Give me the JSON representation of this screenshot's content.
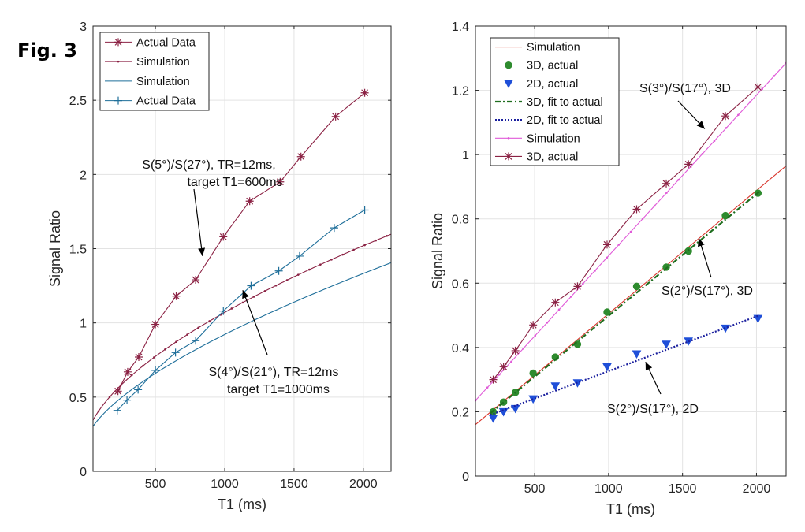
{
  "figure": {
    "label": "Fig. 3"
  },
  "chart_data": [
    {
      "type": "line",
      "xlabel": "T1 (ms)",
      "ylabel": "Signal Ratio",
      "xlim": [
        50,
        2200
      ],
      "ylim": [
        0,
        3
      ],
      "xticks": [
        500,
        1000,
        1500,
        2000
      ],
      "yticks": [
        0,
        0.5,
        1,
        1.5,
        2,
        2.5,
        3
      ],
      "ytick_labels": [
        "0",
        "0.5",
        "1",
        "1.5",
        "2",
        "2.5",
        "3"
      ],
      "grid": true,
      "legend_position": "top-left",
      "series": [
        {
          "name": "Actual Data",
          "color": "#8b2244",
          "marker": "star",
          "x": [
            230,
            300,
            380,
            500,
            650,
            790,
            990,
            1180,
            1400,
            1550,
            1800,
            2010
          ],
          "y": [
            0.54,
            0.67,
            0.77,
            0.99,
            1.18,
            1.29,
            1.58,
            1.82,
            1.95,
            2.12,
            2.39,
            2.55
          ]
        },
        {
          "name": "Simulation",
          "color": "#8b2244",
          "marker": "dot",
          "fn": "sim5_27",
          "x_range": [
            50,
            2200
          ]
        },
        {
          "name": "Simulation",
          "color": "#1f6f9a",
          "marker": "none",
          "fn": "sim4_21",
          "x_range": [
            50,
            2200
          ]
        },
        {
          "name": "Actual Data",
          "color": "#1f6f9a",
          "marker": "plus",
          "x": [
            225,
            295,
            375,
            500,
            645,
            790,
            990,
            1190,
            1390,
            1540,
            1790,
            2010
          ],
          "y": [
            0.41,
            0.48,
            0.55,
            0.68,
            0.8,
            0.88,
            1.08,
            1.25,
            1.35,
            1.45,
            1.64,
            1.76
          ]
        }
      ],
      "annotations": [
        {
          "lines": [
            "S(5°)/S(27°), TR=12ms,",
            "target T1=600ms"
          ],
          "point_to": [
            840,
            1.45
          ]
        },
        {
          "lines": [
            "S(4°)/S(21°), TR=12ms",
            "target T1=1000ms"
          ],
          "point_to": [
            1130,
            1.22
          ]
        }
      ]
    },
    {
      "type": "line",
      "xlabel": "T1 (ms)",
      "ylabel": "Signal Ratio",
      "xlim": [
        100,
        2200
      ],
      "ylim": [
        0,
        1.4
      ],
      "xticks": [
        500,
        1000,
        1500,
        2000
      ],
      "yticks": [
        0,
        0.2,
        0.4,
        0.6,
        0.8,
        1,
        1.2,
        1.4
      ],
      "ytick_labels": [
        "0",
        "0.2",
        "0.4",
        "0.6",
        "0.8",
        "1",
        "1.2",
        "1.4"
      ],
      "grid": true,
      "legend_position": "top-left",
      "series": [
        {
          "name": "Simulation",
          "color": "#d9342b",
          "marker": "none",
          "x": [
            100,
            2200
          ],
          "y": [
            0.16,
            0.965
          ]
        },
        {
          "name": "3D, actual",
          "color": "#2e8b2e",
          "marker": "circle",
          "x": [
            220,
            290,
            370,
            490,
            640,
            790,
            990,
            1190,
            1390,
            1540,
            1790,
            2010
          ],
          "y": [
            0.2,
            0.23,
            0.26,
            0.32,
            0.37,
            0.41,
            0.51,
            0.59,
            0.65,
            0.7,
            0.81,
            0.88
          ]
        },
        {
          "name": "2D, actual",
          "color": "#1f4fd8",
          "marker": "triangle-down",
          "x": [
            220,
            290,
            370,
            490,
            640,
            790,
            990,
            1190,
            1390,
            1540,
            1790,
            2010
          ],
          "y": [
            0.18,
            0.2,
            0.21,
            0.24,
            0.28,
            0.29,
            0.34,
            0.38,
            0.41,
            0.42,
            0.46,
            0.49
          ]
        },
        {
          "name": "3D, fit to actual",
          "color": "#1f6e1f",
          "marker": "none",
          "dash": "dashdot",
          "x": [
            200,
            2020
          ],
          "y": [
            0.195,
            0.885
          ]
        },
        {
          "name": "2D, fit to actual",
          "color": "#1a1f9e",
          "marker": "none",
          "dash": "dotted",
          "x": [
            200,
            2020
          ],
          "y": [
            0.19,
            0.5
          ]
        },
        {
          "name": "Simulation",
          "color": "#e05ad8",
          "marker": "dot",
          "x": [
            100,
            2200
          ],
          "y": [
            0.235,
            1.285
          ]
        },
        {
          "name": "3D, actual",
          "color": "#8b2244",
          "marker": "star",
          "x": [
            220,
            290,
            370,
            490,
            640,
            790,
            990,
            1190,
            1390,
            1540,
            1790,
            2010
          ],
          "y": [
            0.3,
            0.34,
            0.39,
            0.47,
            0.54,
            0.59,
            0.72,
            0.83,
            0.91,
            0.97,
            1.12,
            1.21
          ]
        }
      ],
      "annotations": [
        {
          "lines": [
            "S(3°)/S(17°), 3D"
          ],
          "point_to": [
            1650,
            1.08
          ]
        },
        {
          "lines": [
            "S(2°)/S(17°), 3D"
          ],
          "point_to": [
            1610,
            0.74
          ]
        },
        {
          "lines": [
            "S(2°)/S(17°), 2D"
          ],
          "point_to": [
            1250,
            0.355
          ]
        }
      ]
    }
  ]
}
